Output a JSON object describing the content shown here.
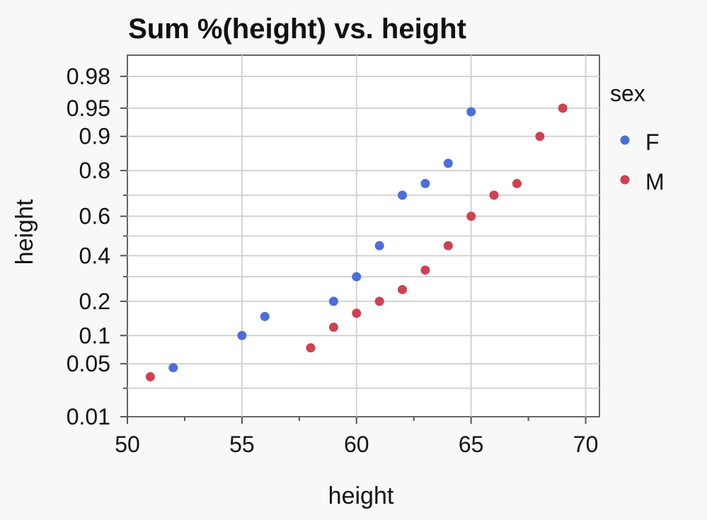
{
  "chart_data": {
    "type": "scatter",
    "title": "Sum %(height) vs. height",
    "xlabel": "height",
    "ylabel": "height",
    "xlim": [
      50,
      70.6
    ],
    "x_ticks": [
      50,
      55,
      60,
      65,
      70
    ],
    "x_minor_ticks": [
      52.5,
      57.5,
      62.5,
      67.5
    ],
    "y_scale": "normal-probability",
    "ylim": [
      0.01,
      0.99
    ],
    "y_ticks": [
      0.01,
      0.05,
      0.1,
      0.2,
      0.4,
      0.6,
      0.8,
      0.9,
      0.95,
      0.98
    ],
    "y_tick_labels": [
      "0.01",
      "0.05",
      "0.1",
      "0.2",
      "0.4",
      "0.6",
      "0.8",
      "0.9",
      "0.95",
      "0.98"
    ],
    "y_minor_ticks": [
      0.025,
      0.3,
      0.5,
      0.7
    ],
    "grid": true,
    "legend": {
      "title": "sex",
      "position": "right"
    },
    "series": [
      {
        "name": "F",
        "color": "#4a6fdc",
        "points": [
          {
            "x": 52,
            "y": 0.045
          },
          {
            "x": 55,
            "y": 0.1
          },
          {
            "x": 56,
            "y": 0.15
          },
          {
            "x": 59,
            "y": 0.2
          },
          {
            "x": 60,
            "y": 0.3
          },
          {
            "x": 61,
            "y": 0.45
          },
          {
            "x": 62,
            "y": 0.7
          },
          {
            "x": 63,
            "y": 0.75
          },
          {
            "x": 64,
            "y": 0.825
          },
          {
            "x": 65,
            "y": 0.945
          }
        ]
      },
      {
        "name": "M",
        "color": "#d04050",
        "points": [
          {
            "x": 51,
            "y": 0.035
          },
          {
            "x": 58,
            "y": 0.075
          },
          {
            "x": 59,
            "y": 0.12
          },
          {
            "x": 60,
            "y": 0.16
          },
          {
            "x": 61,
            "y": 0.2
          },
          {
            "x": 62,
            "y": 0.245
          },
          {
            "x": 63,
            "y": 0.33
          },
          {
            "x": 64,
            "y": 0.45
          },
          {
            "x": 65,
            "y": 0.6
          },
          {
            "x": 66,
            "y": 0.7
          },
          {
            "x": 67,
            "y": 0.75
          },
          {
            "x": 68,
            "y": 0.9
          },
          {
            "x": 69,
            "y": 0.95
          }
        ]
      }
    ]
  }
}
